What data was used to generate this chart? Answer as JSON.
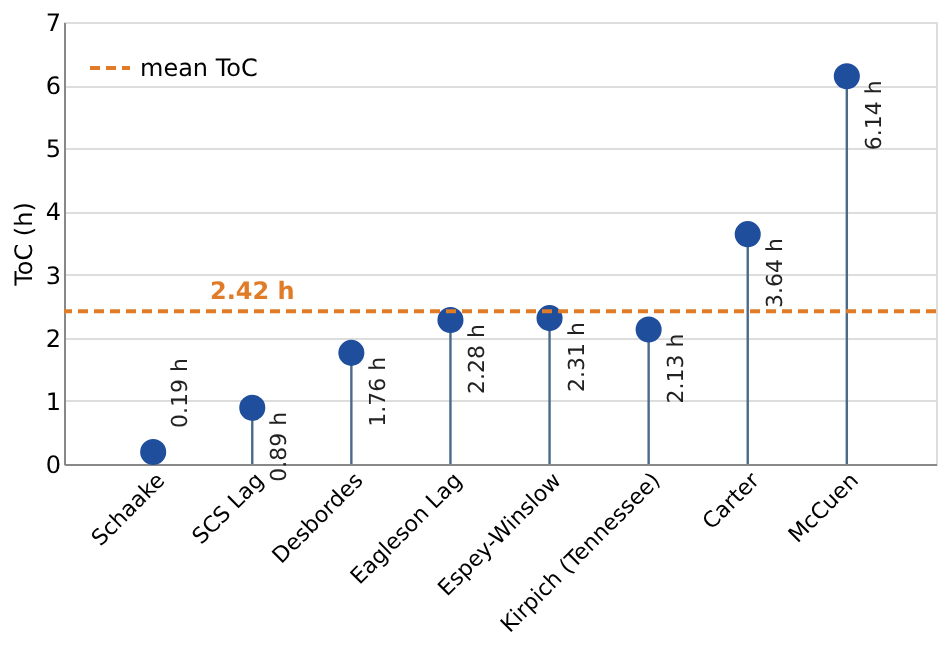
{
  "chart_data": {
    "type": "lollipop",
    "ylabel": "ToC (h)",
    "categories": [
      "Schaake",
      "SCS Lag",
      "Desbordes",
      "Eagleson Lag",
      "Espey-Winslow",
      "Kirpich (Tennessee)",
      "Carter",
      "McCuen"
    ],
    "values": [
      0.19,
      0.89,
      1.76,
      2.28,
      2.31,
      2.13,
      3.64,
      6.14
    ],
    "value_labels": [
      "0.19 h",
      "0.89 h",
      "1.76 h",
      "2.28 h",
      "2.31 h",
      "2.13 h",
      "3.64 h",
      "6.14 h"
    ],
    "color": "#1f4e9c",
    "ylim": [
      0,
      7
    ],
    "yticks": [
      0,
      1,
      2,
      3,
      4,
      5,
      6,
      7
    ],
    "grid": "y",
    "marker": "circle",
    "ref_lines": [
      {
        "axis": "y",
        "value": 2.42,
        "label": "mean ToC",
        "color": "#e07b28",
        "line_style": "dashed"
      }
    ],
    "annotations": [
      {
        "text": "2.42 h",
        "x": "SCS Lag",
        "y": 2.42
      }
    ],
    "legend": "top left"
  }
}
